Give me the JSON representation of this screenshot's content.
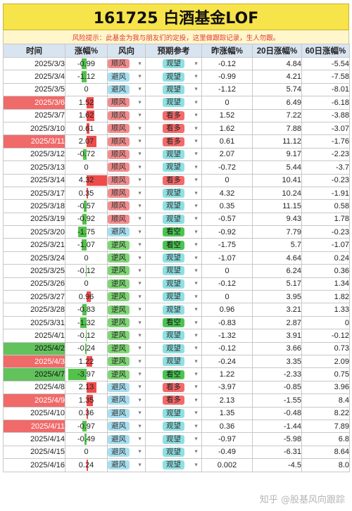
{
  "header": {
    "title": "161725  白酒基金LOF",
    "notice": "风险提示：此基金为我与朋友们的定投，这里做跟踪记录，生人勿跟。"
  },
  "columns": [
    "时间",
    "涨幅%",
    "风向",
    "预期参考",
    "昨涨幅%",
    "20日涨幅%",
    "60日涨幅%"
  ],
  "colors": {
    "positive_bar": "#ef4b4b",
    "negative_bar": "#52c24a",
    "header_bg": "#d9e4f1",
    "title_bg": "#f7e34a"
  },
  "rows": [
    {
      "date": "2025/3/3",
      "chg": "-0.99",
      "wind": "顺风",
      "ref": "观望",
      "prev": "-0.12",
      "d20": "4.84",
      "d60": "-5.54",
      "hl": ""
    },
    {
      "date": "2025/3/4",
      "chg": "-1.12",
      "wind": "避风",
      "ref": "观望",
      "prev": "-0.99",
      "d20": "4.21",
      "d60": "-7.58",
      "hl": ""
    },
    {
      "date": "2025/3/5",
      "chg": "0",
      "wind": "避风",
      "ref": "观望",
      "prev": "-1.12",
      "d20": "5.74",
      "d60": "-8.01",
      "hl": ""
    },
    {
      "date": "2025/3/6",
      "chg": "1.52",
      "wind": "顺风",
      "ref": "观望",
      "prev": "0",
      "d20": "6.49",
      "d60": "-6.18",
      "hl": "red"
    },
    {
      "date": "2025/3/7",
      "chg": "1.62",
      "wind": "顺风",
      "ref": "看多",
      "prev": "1.52",
      "d20": "7.22",
      "d60": "-3.88",
      "hl": ""
    },
    {
      "date": "2025/3/10",
      "chg": "0.61",
      "wind": "顺风",
      "ref": "看多",
      "prev": "1.62",
      "d20": "7.88",
      "d60": "-3.07",
      "hl": ""
    },
    {
      "date": "2025/3/11",
      "chg": "2.07",
      "wind": "顺风",
      "ref": "看多",
      "prev": "0.61",
      "d20": "11.12",
      "d60": "-1.76",
      "hl": "red"
    },
    {
      "date": "2025/3/12",
      "chg": "-0.72",
      "wind": "顺风",
      "ref": "观望",
      "prev": "2.07",
      "d20": "9.17",
      "d60": "-2.23",
      "hl": ""
    },
    {
      "date": "2025/3/13",
      "chg": "0",
      "wind": "顺风",
      "ref": "观望",
      "prev": "-0.72",
      "d20": "5.44",
      "d60": "-3.7",
      "hl": ""
    },
    {
      "date": "2025/3/14",
      "chg": "4.32",
      "wind": "顺风",
      "ref": "看多",
      "prev": "0",
      "d20": "10.41",
      "d60": "-0.23",
      "hl": ""
    },
    {
      "date": "2025/3/17",
      "chg": "0.35",
      "wind": "顺风",
      "ref": "观望",
      "prev": "4.32",
      "d20": "10.24",
      "d60": "-1.91",
      "hl": ""
    },
    {
      "date": "2025/3/18",
      "chg": "-0.57",
      "wind": "顺风",
      "ref": "观望",
      "prev": "0.35",
      "d20": "11.15",
      "d60": "0.58",
      "hl": ""
    },
    {
      "date": "2025/3/19",
      "chg": "-0.92",
      "wind": "顺风",
      "ref": "观望",
      "prev": "-0.57",
      "d20": "9.43",
      "d60": "1.78",
      "hl": ""
    },
    {
      "date": "2025/3/20",
      "chg": "-1.75",
      "wind": "避风",
      "ref": "看空",
      "prev": "-0.92",
      "d20": "7.79",
      "d60": "-0.23",
      "hl": ""
    },
    {
      "date": "2025/3/21",
      "chg": "-1.07",
      "wind": "逆风",
      "ref": "看空",
      "prev": "-1.75",
      "d20": "5.7",
      "d60": "-1.07",
      "hl": ""
    },
    {
      "date": "2025/3/24",
      "chg": "0",
      "wind": "逆风",
      "ref": "观望",
      "prev": "-1.07",
      "d20": "4.64",
      "d60": "0.24",
      "hl": ""
    },
    {
      "date": "2025/3/25",
      "chg": "-0.12",
      "wind": "逆风",
      "ref": "观望",
      "prev": "0",
      "d20": "6.24",
      "d60": "0.36",
      "hl": ""
    },
    {
      "date": "2025/3/26",
      "chg": "0",
      "wind": "逆风",
      "ref": "观望",
      "prev": "-0.12",
      "d20": "5.17",
      "d60": "1.34",
      "hl": ""
    },
    {
      "date": "2025/3/27",
      "chg": "0.96",
      "wind": "逆风",
      "ref": "观望",
      "prev": "0",
      "d20": "3.95",
      "d60": "1.82",
      "hl": ""
    },
    {
      "date": "2025/3/28",
      "chg": "-0.83",
      "wind": "逆风",
      "ref": "观望",
      "prev": "0.96",
      "d20": "3.21",
      "d60": "1.33",
      "hl": ""
    },
    {
      "date": "2025/3/31",
      "chg": "-1.32",
      "wind": "逆风",
      "ref": "看空",
      "prev": "-0.83",
      "d20": "2.87",
      "d60": "0",
      "hl": ""
    },
    {
      "date": "2025/4/1",
      "chg": "-0.12",
      "wind": "逆风",
      "ref": "观望",
      "prev": "-1.32",
      "d20": "3.91",
      "d60": "-0.12",
      "hl": ""
    },
    {
      "date": "2025/4/2",
      "chg": "-0.24",
      "wind": "逆风",
      "ref": "观望",
      "prev": "-0.12",
      "d20": "3.66",
      "d60": "0.73",
      "hl": "green"
    },
    {
      "date": "2025/4/3",
      "chg": "1.22",
      "wind": "逆风",
      "ref": "观望",
      "prev": "-0.24",
      "d20": "3.35",
      "d60": "2.09",
      "hl": "red"
    },
    {
      "date": "2025/4/7",
      "chg": "-3.97",
      "wind": "逆风",
      "ref": "看空",
      "prev": "1.22",
      "d20": "-2.33",
      "d60": "0.75",
      "hl": "green"
    },
    {
      "date": "2025/4/8",
      "chg": "2.13",
      "wind": "避风",
      "ref": "看多",
      "prev": "-3.97",
      "d20": "-0.85",
      "d60": "3.96",
      "hl": ""
    },
    {
      "date": "2025/4/9",
      "chg": "1.35",
      "wind": "避风",
      "ref": "看多",
      "prev": "2.13",
      "d20": "-1.55",
      "d60": "8.4",
      "hl": "red"
    },
    {
      "date": "2025/4/10",
      "chg": "0.36",
      "wind": "避风",
      "ref": "观望",
      "prev": "1.35",
      "d20": "-0.48",
      "d60": "8.22",
      "hl": ""
    },
    {
      "date": "2025/4/11",
      "chg": "-0.97",
      "wind": "避风",
      "ref": "观望",
      "prev": "0.36",
      "d20": "-1.44",
      "d60": "7.89",
      "hl": "red"
    },
    {
      "date": "2025/4/14",
      "chg": "-0.49",
      "wind": "避风",
      "ref": "观望",
      "prev": "-0.97",
      "d20": "-5.98",
      "d60": "6.8",
      "hl": ""
    },
    {
      "date": "2025/4/15",
      "chg": "0",
      "wind": "避风",
      "ref": "观望",
      "prev": "-0.49",
      "d20": "-6.31",
      "d60": "8.64",
      "hl": ""
    },
    {
      "date": "2025/4/16",
      "chg": "0.24",
      "wind": "避风",
      "ref": "观望",
      "prev": "0.002",
      "d20": "-4.5",
      "d60": "8.0",
      "hl": ""
    }
  ],
  "watermark": "知乎 @股基风向跟踪"
}
